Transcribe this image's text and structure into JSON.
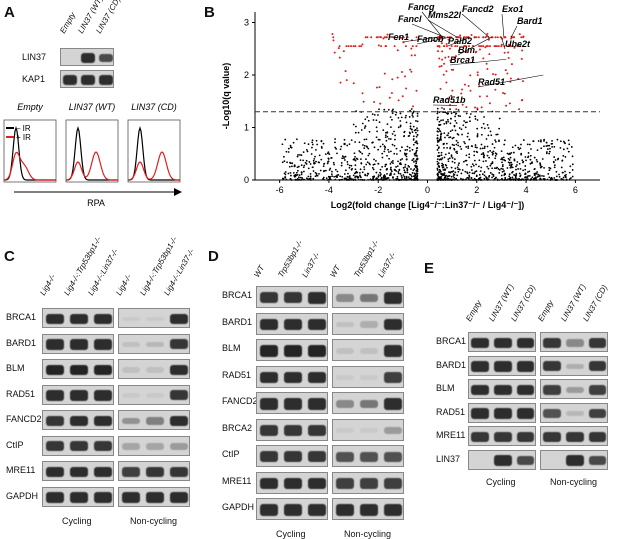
{
  "panelA": {
    "label": "A",
    "lanes": [
      "Empty",
      "LIN37 (WT)",
      "LIN37 (CD)"
    ],
    "blots": [
      {
        "name": "LIN37",
        "levels": [
          0.0,
          0.9,
          0.75
        ]
      },
      {
        "name": "KAP1",
        "levels": [
          0.9,
          0.9,
          0.9
        ]
      }
    ],
    "flow": {
      "titles": [
        "Empty",
        "LIN37 (WT)",
        "LIN37 (CD)"
      ],
      "legend": [
        "– IR",
        "+ IR"
      ],
      "xlabel": "RPA",
      "colors": {
        "minus_ir": "#000000",
        "plus_ir": "#e02020"
      }
    }
  },
  "panelB": {
    "label": "B",
    "ylabel": "-Log10(q value)",
    "xlabel": "Log2(fold change [Lig4⁻/⁻:Lin37⁻/⁻ / Lig4⁻/⁻])",
    "xticks": [
      -6,
      -4,
      -2,
      0,
      2,
      4,
      6
    ],
    "yticks": [
      0,
      1,
      2,
      3
    ],
    "threshold": 1.3,
    "genes": [
      {
        "name": "Fancg",
        "x": 0.6,
        "y": 2.72
      },
      {
        "name": "Fancl",
        "x": 0.7,
        "y": 2.72
      },
      {
        "name": "Mms22l",
        "x": 1.2,
        "y": 2.72
      },
      {
        "name": "Fen1",
        "x": 0.4,
        "y": 2.72
      },
      {
        "name": "Fancb",
        "x": 0.9,
        "y": 2.72
      },
      {
        "name": "Palb2",
        "x": 1.7,
        "y": 2.72
      },
      {
        "name": "Fancd2",
        "x": 2.5,
        "y": 2.72
      },
      {
        "name": "Exo1",
        "x": 3.1,
        "y": 2.72
      },
      {
        "name": "Bard1",
        "x": 3.4,
        "y": 2.72
      },
      {
        "name": "Ube2t",
        "x": 3.0,
        "y": 2.72
      },
      {
        "name": "Blm",
        "x": 2.6,
        "y": 2.72
      },
      {
        "name": "Brca1",
        "x": 3.2,
        "y": 2.3
      },
      {
        "name": "Rad51",
        "x": 4.7,
        "y": 2.0
      },
      {
        "name": "Rad51b",
        "x": 1.2,
        "y": 1.42
      }
    ],
    "colors": {
      "sig": "#e02020",
      "nonsig": "#000000"
    }
  },
  "panelC": {
    "label": "C",
    "lanes": [
      "Lig4-/-",
      "Lig4-/-:Trp53bp1-/-",
      "Lig4-/-:Lin37-/-",
      "Lig4-/-",
      "Lig4-/-:Trp53bp1-/-",
      "Lig4-/-:Lin37-/-"
    ],
    "rows": [
      {
        "name": "BRCA1",
        "cyc": [
          0.9,
          0.9,
          0.9
        ],
        "non": [
          0.05,
          0.05,
          0.9
        ]
      },
      {
        "name": "BARD1",
        "cyc": [
          0.9,
          0.9,
          0.9
        ],
        "non": [
          0.1,
          0.15,
          0.85
        ]
      },
      {
        "name": "BLM",
        "cyc": [
          0.95,
          0.95,
          0.95
        ],
        "non": [
          0.1,
          0.1,
          0.9
        ]
      },
      {
        "name": "RAD51",
        "cyc": [
          0.9,
          0.9,
          0.9
        ],
        "non": [
          0.05,
          0.05,
          0.85
        ]
      },
      {
        "name": "FANCD2",
        "cyc": [
          0.85,
          0.9,
          0.9
        ],
        "non": [
          0.35,
          0.45,
          0.9
        ]
      },
      {
        "name": "CtIP",
        "cyc": [
          0.85,
          0.85,
          0.85
        ],
        "non": [
          0.25,
          0.25,
          0.3
        ]
      },
      {
        "name": "MRE11",
        "cyc": [
          0.9,
          0.9,
          0.9
        ],
        "non": [
          0.8,
          0.85,
          0.85
        ]
      },
      {
        "name": "GAPDH",
        "cyc": [
          0.9,
          0.9,
          0.9
        ],
        "non": [
          0.9,
          0.9,
          0.9
        ]
      }
    ],
    "captions": [
      "Cycling",
      "Non-cycling"
    ]
  },
  "panelD": {
    "label": "D",
    "lanes": [
      "WT",
      "Trp53bp1-/-",
      "Lin37-/-",
      "WT",
      "Trp53bp1-/-",
      "Lin37-/-"
    ],
    "rows": [
      {
        "name": "BRCA1",
        "cyc": [
          0.85,
          0.85,
          0.9
        ],
        "non": [
          0.4,
          0.5,
          0.9
        ]
      },
      {
        "name": "BARD1",
        "cyc": [
          0.9,
          0.9,
          0.9
        ],
        "non": [
          0.1,
          0.2,
          0.9
        ]
      },
      {
        "name": "BLM",
        "cyc": [
          0.95,
          0.95,
          0.95
        ],
        "non": [
          0.1,
          0.1,
          0.9
        ]
      },
      {
        "name": "RAD51",
        "cyc": [
          0.9,
          0.9,
          0.9
        ],
        "non": [
          0.05,
          0.05,
          0.8
        ]
      },
      {
        "name": "FANCD2",
        "cyc": [
          0.9,
          0.9,
          0.9
        ],
        "non": [
          0.4,
          0.5,
          0.9
        ]
      },
      {
        "name": "BRCA2",
        "cyc": [
          0.85,
          0.85,
          0.85
        ],
        "non": [
          0.05,
          0.05,
          0.3
        ]
      },
      {
        "name": "CtIP",
        "cyc": [
          0.85,
          0.85,
          0.85
        ],
        "non": [
          0.7,
          0.7,
          0.7
        ]
      },
      {
        "name": "MRE11",
        "cyc": [
          0.9,
          0.9,
          0.9
        ],
        "non": [
          0.8,
          0.8,
          0.8
        ]
      },
      {
        "name": "GAPDH",
        "cyc": [
          0.9,
          0.9,
          0.9
        ],
        "non": [
          0.9,
          0.9,
          0.9
        ]
      }
    ],
    "captions": [
      "Cycling",
      "Non-cycling"
    ]
  },
  "panelE": {
    "label": "E",
    "lanes": [
      "Empty",
      "LIN37 (WT)",
      "LIN37 (CD)",
      "Empty",
      "LIN37 (WT)",
      "LIN37 (CD)"
    ],
    "rows": [
      {
        "name": "BRCA1",
        "cyc": [
          0.9,
          0.9,
          0.9
        ],
        "non": [
          0.85,
          0.4,
          0.85
        ]
      },
      {
        "name": "BARD1",
        "cyc": [
          0.9,
          0.9,
          0.9
        ],
        "non": [
          0.85,
          0.2,
          0.85
        ]
      },
      {
        "name": "BLM",
        "cyc": [
          0.9,
          0.9,
          0.9
        ],
        "non": [
          0.8,
          0.3,
          0.8
        ]
      },
      {
        "name": "RAD51",
        "cyc": [
          0.9,
          0.9,
          0.9
        ],
        "non": [
          0.7,
          0.15,
          0.8
        ]
      },
      {
        "name": "MRE11",
        "cyc": [
          0.85,
          0.85,
          0.85
        ],
        "non": [
          0.85,
          0.85,
          0.85
        ]
      },
      {
        "name": "LIN37",
        "cyc": [
          0.0,
          0.9,
          0.75
        ],
        "non": [
          0.0,
          0.9,
          0.75
        ]
      }
    ],
    "captions": [
      "Cycling",
      "Non-cycling"
    ]
  }
}
